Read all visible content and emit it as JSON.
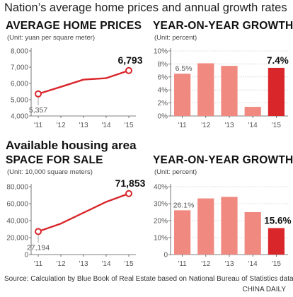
{
  "title": "Nation’s average home prices and annual growth rates",
  "section_heading": "Available housing area",
  "source": "Source: Calculation by Blue Book of Real Estate based on National Bureau of Statistics data",
  "credit": "CHINA DAILY",
  "colors": {
    "line": "#d9262b",
    "bar": "#f08a80",
    "bar_highlight": "#d9262b",
    "axis": "#555555",
    "grid": "#bbbbbb"
  },
  "chart_data": [
    {
      "type": "line",
      "title": "AVERAGE HOME PRICES",
      "unit": "(Unit: yuan per square meter)",
      "categories": [
        "'11",
        "'12",
        "'13",
        "'14",
        "'15"
      ],
      "values": [
        5357,
        5791,
        6237,
        6324,
        6793
      ],
      "ylim": [
        4000,
        8000
      ],
      "yticks": [
        4000,
        5000,
        6000,
        7000,
        8000
      ],
      "ytick_labels": [
        "4,000",
        "5,000",
        "6,000",
        "7,000",
        "8,000"
      ],
      "labels": [
        {
          "index": 0,
          "text": "5,357"
        },
        {
          "index": 4,
          "text": "6,793"
        }
      ],
      "grid": false
    },
    {
      "type": "bar",
      "title": "YEAR-ON-YEAR GROWTH",
      "unit": "(Unit: percent)",
      "categories": [
        "'11",
        "'12",
        "'13",
        "'14",
        "'15"
      ],
      "values": [
        6.5,
        8.1,
        7.7,
        1.4,
        7.4
      ],
      "ylim": [
        0,
        10
      ],
      "yticks": [
        0,
        2,
        4,
        6,
        8,
        10
      ],
      "ytick_labels": [
        "0%",
        "2%",
        "4%",
        "6%",
        "8%",
        "10%"
      ],
      "labels": [
        {
          "index": 0,
          "text": "6.5%"
        },
        {
          "index": 4,
          "text": "7.4%"
        }
      ],
      "highlight_index": 4,
      "grid": true
    },
    {
      "type": "line",
      "title": "SPACE FOR SALE",
      "unit": "(Unit: 10,000 square meters)",
      "categories": [
        "'11",
        "'12",
        "'13",
        "'14",
        "'15"
      ],
      "values": [
        27194,
        36500,
        49300,
        62100,
        71853
      ],
      "ylim": [
        0,
        80000
      ],
      "yticks": [
        0,
        20000,
        40000,
        60000,
        80000
      ],
      "ytick_labels": [
        "0",
        "20,000",
        "40,000",
        "60,000",
        "80,000"
      ],
      "labels": [
        {
          "index": 0,
          "text": "27,194"
        },
        {
          "index": 4,
          "text": "71,853"
        }
      ],
      "grid": false
    },
    {
      "type": "bar",
      "title": "YEAR-ON-YEAR GROWTH",
      "unit": "(Unit: percent)",
      "categories": [
        "'11",
        "'12",
        "'13",
        "'14",
        "'15"
      ],
      "values": [
        26.1,
        33.1,
        34.0,
        25.0,
        15.6
      ],
      "ylim": [
        0,
        40
      ],
      "yticks": [
        0,
        10,
        20,
        30,
        40
      ],
      "ytick_labels": [
        "0",
        "10%",
        "20%",
        "30%",
        "40%"
      ],
      "labels": [
        {
          "index": 0,
          "text": "26.1%"
        },
        {
          "index": 4,
          "text": "15.6%"
        }
      ],
      "highlight_index": 4,
      "grid": true
    }
  ]
}
